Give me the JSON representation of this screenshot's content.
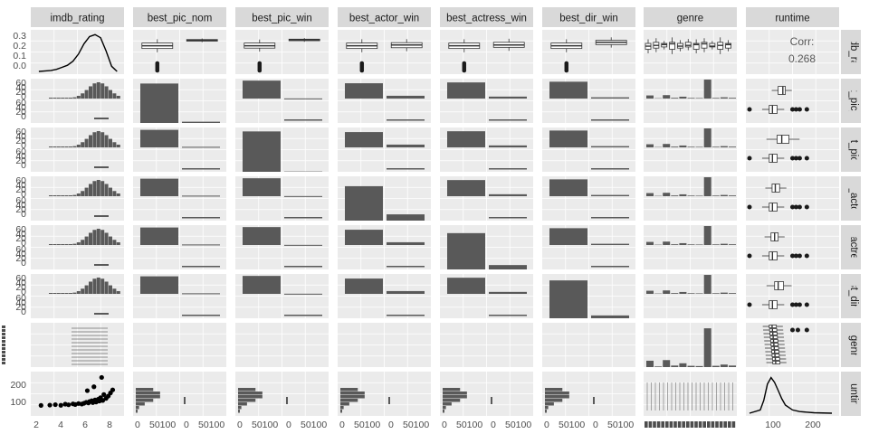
{
  "chart_data": {
    "type": "scatterplot-matrix",
    "variables": [
      "imdb_rating",
      "best_pic_nom",
      "best_pic_win",
      "best_actor_win",
      "best_actress_win",
      "best_dir_win",
      "genre",
      "runtime"
    ],
    "row_labels": [
      "imdb_rating",
      "best_pic_nom",
      "best_pic_win",
      "best_actor_win",
      "best_actress_win",
      "best_dir_win",
      "genre",
      "runtime"
    ],
    "correlation": {
      "label": "Corr:",
      "value": "0.268",
      "x": "imdb_rating",
      "y": "runtime"
    },
    "axes": {
      "imdb_rating_x_ticks": [
        "2",
        "4",
        "6",
        "8"
      ],
      "imdb_density_y_ticks": [
        "0.3",
        "0.2",
        "0.1",
        "0.0"
      ],
      "count_y_ticks": [
        "60",
        "40",
        "20",
        "0"
      ],
      "runtime_y_ticks": [
        "200",
        "100"
      ],
      "count_x_ticks": [
        "0",
        "50100",
        "0",
        "50100"
      ],
      "runtime_x_ticks": [
        "100",
        "200"
      ]
    },
    "imdb_rating_density": {
      "x": [
        1.9,
        2.5,
        3.0,
        3.5,
        4.0,
        4.5,
        5.0,
        5.5,
        6.0,
        6.5,
        7.0,
        7.5,
        8.0,
        8.5,
        9.0
      ],
      "y": [
        0.0,
        0.005,
        0.01,
        0.02,
        0.04,
        0.06,
        0.1,
        0.17,
        0.27,
        0.34,
        0.36,
        0.33,
        0.2,
        0.05,
        0.0
      ]
    },
    "runtime_density": {
      "x": [
        40,
        70,
        80,
        90,
        100,
        110,
        120,
        130,
        140,
        160,
        180,
        220,
        270
      ],
      "y": [
        0.0,
        0.002,
        0.008,
        0.018,
        0.022,
        0.019,
        0.014,
        0.009,
        0.005,
        0.002,
        0.001,
        0.0003,
        0.0
      ]
    },
    "binary_counts": {
      "best_pic_nom": {
        "no": 630,
        "yes": 20
      },
      "best_pic_win": {
        "no": 645,
        "yes": 5
      },
      "best_actor_win": {
        "no": 550,
        "yes": 100
      },
      "best_actress_win": {
        "no": 580,
        "yes": 70
      },
      "best_dir_win": {
        "no": 605,
        "yes": 45
      }
    },
    "genre_counts": [
      50,
      5,
      55,
      12,
      30,
      10,
      8,
      305,
      10,
      20,
      12
    ],
    "boxplot_summaries": {
      "imdb_rating_by_best_pic_nom": {
        "no": [
          5.9,
          6.6,
          7.3
        ],
        "yes": [
          7.8,
          8.0,
          8.2
        ]
      },
      "imdb_rating_by_best_pic_win": {
        "no": [
          6.0,
          6.6,
          7.3
        ],
        "yes": [
          7.9,
          8.1,
          8.3
        ]
      },
      "imdb_rating_by_best_actor_win": {
        "no": [
          5.9,
          6.6,
          7.3
        ],
        "yes": [
          6.1,
          6.8,
          7.4
        ]
      },
      "imdb_rating_by_best_actress_win": {
        "no": [
          5.9,
          6.6,
          7.3
        ],
        "yes": [
          6.2,
          6.8,
          7.5
        ]
      },
      "imdb_rating_by_best_dir_win": {
        "no": [
          5.9,
          6.6,
          7.3
        ],
        "yes": [
          6.9,
          7.5,
          8.0
        ]
      },
      "runtime_by_best_pic_nom": {
        "no": [
          95,
          104,
          117
        ],
        "yes": [
          120,
          133,
          140
        ]
      },
      "runtime_by_best_pic_win": {
        "no": [
          95,
          104,
          117
        ],
        "yes": [
          117,
          130,
          150
        ]
      },
      "runtime_by_best_actor_win": {
        "no": [
          95,
          104,
          117
        ],
        "yes": [
          103,
          112,
          124
        ]
      },
      "runtime_by_best_actress_win": {
        "no": [
          95,
          104,
          117
        ],
        "yes": [
          100,
          110,
          120
        ]
      },
      "runtime_by_best_dir_win": {
        "no": [
          95,
          104,
          117
        ],
        "yes": [
          110,
          120,
          135
        ]
      }
    },
    "scatter_imdb_vs_runtime": {
      "x": [
        2.1,
        2.9,
        3.4,
        3.9,
        4.3,
        4.6,
        5.0,
        5.2,
        5.5,
        5.8,
        6.0,
        6.2,
        6.4,
        6.5,
        6.7,
        6.8,
        7.0,
        7.1,
        7.3,
        7.4,
        7.5,
        7.7,
        7.8,
        8.0,
        8.2,
        8.4,
        8.6,
        7.6,
        6.9,
        6.3
      ],
      "y": [
        90,
        92,
        95,
        91,
        98,
        94,
        100,
        96,
        102,
        99,
        104,
        110,
        106,
        115,
        120,
        108,
        125,
        112,
        130,
        118,
        140,
        122,
        160,
        135,
        150,
        170,
        190,
        270,
        210,
        185
      ]
    }
  }
}
